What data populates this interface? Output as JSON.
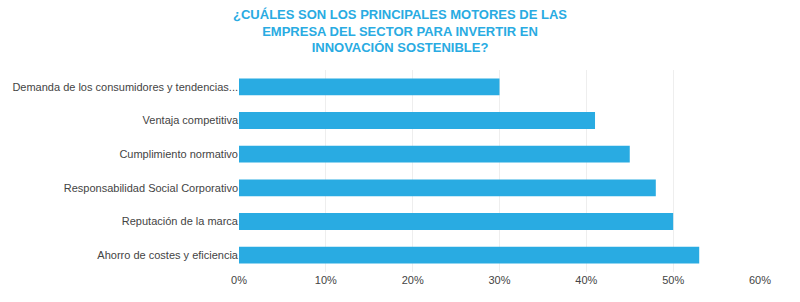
{
  "chart_data": {
    "type": "bar",
    "orientation": "horizontal",
    "title": "¿CUÁLES SON LOS PRINCIPALES MOTORES DE LAS\nEMPRESA DEL SECTOR PARA INVERTIR EN\nINNOVACIÓN SOSTENIBLE?",
    "categories": [
      "Demanda de los consumidores y tendencias...",
      "Ventaja competitiva",
      "Cumplimiento normativo",
      "Responsabilidad Social Corporativo",
      "Reputación de la marca",
      "Ahorro de costes y eficiencia"
    ],
    "values": [
      0.3,
      0.41,
      0.45,
      0.48,
      0.5,
      0.53
    ],
    "color": "#29ABE2",
    "xlim": [
      0,
      0.6
    ],
    "xticks": [
      {
        "value": 0.0,
        "label": "0%"
      },
      {
        "value": 0.1,
        "label": "10%"
      },
      {
        "value": 0.2,
        "label": "20%"
      },
      {
        "value": 0.3,
        "label": "30%"
      },
      {
        "value": 0.4,
        "label": "40%"
      },
      {
        "value": 0.5,
        "label": "50%"
      },
      {
        "value": 0.6,
        "label": "60%"
      }
    ],
    "grid": true
  }
}
